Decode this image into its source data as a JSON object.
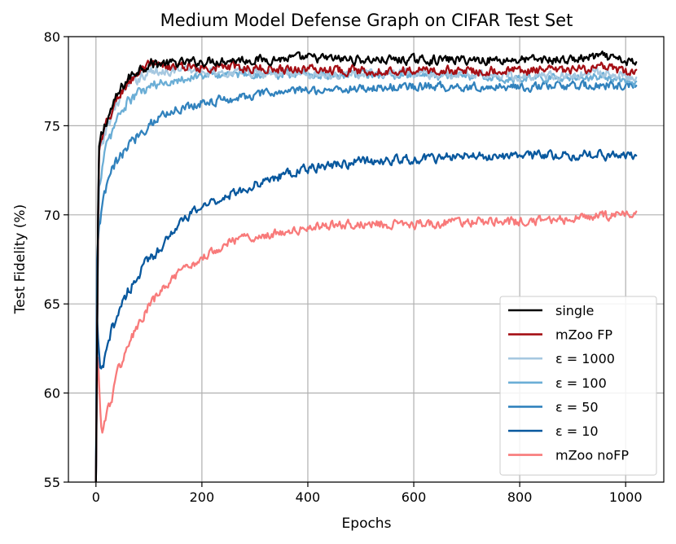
{
  "chart_data": {
    "type": "line",
    "title": "Medium Model Defense Graph on CIFAR Test Set",
    "xlabel": "Epochs",
    "ylabel": "Test Fidelity (%)",
    "xlim": [
      -52,
      1072
    ],
    "ylim": [
      55,
      80
    ],
    "xticks": [
      0,
      200,
      400,
      600,
      800,
      1000
    ],
    "yticks": [
      55,
      60,
      65,
      70,
      75,
      80
    ],
    "grid": true,
    "legend_position": "bottom-right",
    "series": [
      {
        "name": "single",
        "color": "#000000",
        "x": [
          0,
          5,
          10,
          20,
          30,
          40,
          50,
          60,
          80,
          100,
          125,
          150,
          200,
          250,
          300,
          400,
          500,
          600,
          700,
          800,
          900,
          950,
          1000,
          1020
        ],
        "y": [
          55,
          73.5,
          74.3,
          75.3,
          76.0,
          76.6,
          77.2,
          77.6,
          78.2,
          78.5,
          78.5,
          78.5,
          78.6,
          78.7,
          78.7,
          78.8,
          78.7,
          78.7,
          78.7,
          78.7,
          78.7,
          78.9,
          78.6,
          78.5
        ]
      },
      {
        "name": "mZoo FP",
        "color": "#a50f15",
        "x": [
          0,
          5,
          10,
          20,
          30,
          40,
          50,
          60,
          80,
          100,
          125,
          150,
          200,
          250,
          300,
          400,
          500,
          600,
          700,
          800,
          900,
          950,
          1000,
          1020
        ],
        "y": [
          55,
          73.3,
          74.0,
          75.0,
          75.8,
          76.4,
          77.0,
          77.4,
          78.0,
          78.3,
          78.3,
          78.3,
          78.3,
          78.3,
          78.2,
          78.2,
          78.1,
          78.1,
          78.1,
          78.1,
          78.1,
          78.3,
          78.0,
          78.0
        ]
      },
      {
        "name": "ε = 1000",
        "color": "#a6c8e0",
        "x": [
          0,
          5,
          10,
          20,
          30,
          40,
          50,
          60,
          80,
          100,
          125,
          150,
          200,
          250,
          300,
          400,
          500,
          600,
          700,
          800,
          900,
          950,
          1000,
          1020
        ],
        "y": [
          55,
          73.0,
          73.8,
          74.8,
          75.6,
          76.3,
          76.8,
          77.2,
          77.7,
          78.0,
          78.1,
          78.1,
          78.1,
          78.0,
          78.0,
          77.9,
          77.9,
          77.9,
          77.9,
          77.8,
          77.8,
          78.0,
          77.8,
          77.7
        ]
      },
      {
        "name": "ε = 100",
        "color": "#6baed6",
        "x": [
          0,
          5,
          10,
          20,
          30,
          40,
          50,
          60,
          80,
          100,
          125,
          150,
          200,
          250,
          300,
          400,
          500,
          600,
          700,
          800,
          900,
          950,
          1000,
          1020
        ],
        "y": [
          55,
          71.5,
          72.5,
          73.8,
          74.6,
          75.4,
          75.9,
          76.3,
          76.8,
          77.1,
          77.4,
          77.6,
          77.8,
          77.9,
          77.9,
          77.9,
          77.9,
          77.8,
          77.8,
          77.7,
          77.7,
          77.8,
          77.6,
          77.4
        ]
      },
      {
        "name": "ε = 50",
        "color": "#3182bd",
        "x": [
          0,
          2,
          5,
          8,
          12,
          20,
          30,
          45,
          60,
          80,
          100,
          125,
          150,
          200,
          250,
          300,
          350,
          400,
          500,
          600,
          700,
          800,
          900,
          1000,
          1020
        ],
        "y": [
          55,
          67.2,
          69.5,
          69.8,
          70.3,
          71.5,
          72.5,
          73.2,
          73.8,
          74.5,
          75.1,
          75.6,
          75.9,
          76.3,
          76.5,
          76.7,
          76.9,
          77.0,
          77.1,
          77.2,
          77.2,
          77.2,
          77.2,
          77.3,
          77.2
        ]
      },
      {
        "name": "ε = 10",
        "color": "#08589e",
        "x": [
          0,
          2,
          5,
          8,
          12,
          20,
          30,
          45,
          60,
          80,
          100,
          125,
          150,
          200,
          250,
          300,
          350,
          400,
          450,
          500,
          600,
          700,
          800,
          900,
          1000,
          1020
        ],
        "y": [
          55,
          64.0,
          62.5,
          61.5,
          61.2,
          62.2,
          63.5,
          64.8,
          65.7,
          66.6,
          67.5,
          68.3,
          69.3,
          70.5,
          71.1,
          71.7,
          72.2,
          72.6,
          72.8,
          73.0,
          73.1,
          73.3,
          73.3,
          73.4,
          73.3,
          73.2
        ]
      },
      {
        "name": "mZoo noFP",
        "color": "#f87a7a",
        "x": [
          0,
          2,
          4,
          7,
          10,
          15,
          20,
          30,
          45,
          60,
          80,
          100,
          125,
          150,
          200,
          250,
          300,
          350,
          400,
          450,
          500,
          600,
          700,
          800,
          900,
          1000,
          1020
        ],
        "y": [
          55,
          61.0,
          62.0,
          59.5,
          58.2,
          58.0,
          58.8,
          59.8,
          61.5,
          62.6,
          63.8,
          64.8,
          65.8,
          66.5,
          67.6,
          68.5,
          68.8,
          69.0,
          69.2,
          69.5,
          69.5,
          69.5,
          69.6,
          69.6,
          69.8,
          70.0,
          70.2
        ]
      }
    ]
  }
}
